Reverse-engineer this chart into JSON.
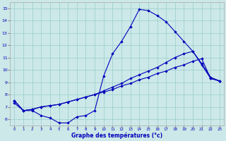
{
  "x": [
    0,
    1,
    2,
    3,
    4,
    5,
    6,
    7,
    8,
    9,
    10,
    11,
    12,
    13,
    14,
    15,
    16,
    17,
    18,
    19,
    20,
    21,
    22,
    23
  ],
  "line1": [
    7.5,
    6.7,
    6.7,
    6.3,
    6.1,
    5.7,
    5.7,
    6.2,
    6.3,
    6.7,
    9.5,
    11.3,
    12.3,
    13.5,
    14.9,
    14.8,
    14.4,
    13.9,
    13.1,
    12.3,
    11.5,
    10.4,
    9.3,
    9.1
  ],
  "line2": [
    7.5,
    6.7,
    6.8,
    7.0,
    7.1,
    7.2,
    7.4,
    7.6,
    7.8,
    8.0,
    8.3,
    8.6,
    8.9,
    9.3,
    9.6,
    9.9,
    10.2,
    10.6,
    11.0,
    11.3,
    11.5,
    10.5,
    9.4,
    9.1
  ],
  "line3": [
    7.3,
    6.7,
    6.8,
    7.0,
    7.1,
    7.2,
    7.4,
    7.6,
    7.8,
    8.0,
    8.2,
    8.4,
    8.7,
    8.9,
    9.2,
    9.4,
    9.7,
    9.9,
    10.2,
    10.4,
    10.7,
    10.9,
    9.3,
    9.1
  ],
  "bg_color": "#cce8e8",
  "line_color": "#0000bb",
  "grid_color": "#99cccc",
  "xlabel": "Graphe des températures (°c)",
  "ylim": [
    5.5,
    15.5
  ],
  "xlim": [
    -0.5,
    23.5
  ],
  "yticks": [
    6,
    7,
    8,
    9,
    10,
    11,
    12,
    13,
    14,
    15
  ],
  "xticks": [
    0,
    1,
    2,
    3,
    4,
    5,
    6,
    7,
    8,
    9,
    10,
    11,
    12,
    13,
    14,
    15,
    16,
    17,
    18,
    19,
    20,
    21,
    22,
    23
  ]
}
